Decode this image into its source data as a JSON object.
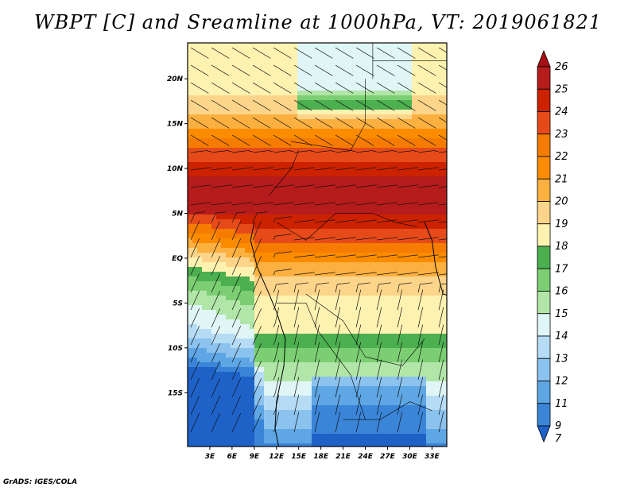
{
  "title": "WBPT [C] and Sreamline at 1000hPa, VT: 2019061821",
  "credit": "GrADS: IGES/COLA",
  "map": {
    "lat_range": [
      -21,
      24
    ],
    "lon_range": [
      0,
      35
    ],
    "lat_ticks": [
      {
        "value": 20,
        "label": "20N"
      },
      {
        "value": 15,
        "label": "15N"
      },
      {
        "value": 10,
        "label": "10N"
      },
      {
        "value": 5,
        "label": "5N"
      },
      {
        "value": 0,
        "label": "EQ"
      },
      {
        "value": -5,
        "label": "5S"
      },
      {
        "value": -10,
        "label": "10S"
      },
      {
        "value": -15,
        "label": "15S"
      }
    ],
    "lon_ticks": [
      {
        "value": 3,
        "label": "3E"
      },
      {
        "value": 6,
        "label": "6E"
      },
      {
        "value": 9,
        "label": "9E"
      },
      {
        "value": 12,
        "label": "12E"
      },
      {
        "value": 15,
        "label": "15E"
      },
      {
        "value": 18,
        "label": "18E"
      },
      {
        "value": 21,
        "label": "21E"
      },
      {
        "value": 24,
        "label": "24E"
      },
      {
        "value": 27,
        "label": "27E"
      },
      {
        "value": 30,
        "label": "30E"
      },
      {
        "value": 33,
        "label": "33E"
      }
    ]
  },
  "colorbar": {
    "levels": [
      {
        "label": "26",
        "color": "#a50f15"
      },
      {
        "label": "25",
        "color": "#b71c1c"
      },
      {
        "label": "24",
        "color": "#cc2200"
      },
      {
        "label": "23",
        "color": "#e64a19"
      },
      {
        "label": "22",
        "color": "#f57c00"
      },
      {
        "label": "21",
        "color": "#fb8c00"
      },
      {
        "label": "20",
        "color": "#fbb040"
      },
      {
        "label": "19",
        "color": "#fdd58a"
      },
      {
        "label": "18",
        "color": "#fdf2b0"
      },
      {
        "label": "17",
        "color": "#4caf50"
      },
      {
        "label": "16",
        "color": "#7bcf72"
      },
      {
        "label": "15",
        "color": "#b2e6a8"
      },
      {
        "label": "14",
        "color": "#e0f5f5"
      },
      {
        "label": "13",
        "color": "#b6dcf5"
      },
      {
        "label": "12",
        "color": "#8cc3ee"
      },
      {
        "label": "11",
        "color": "#5ea6e4"
      },
      {
        "label": "9",
        "color": "#3a85d8"
      },
      {
        "label": "7",
        "color": "#1e62c8"
      }
    ]
  }
}
